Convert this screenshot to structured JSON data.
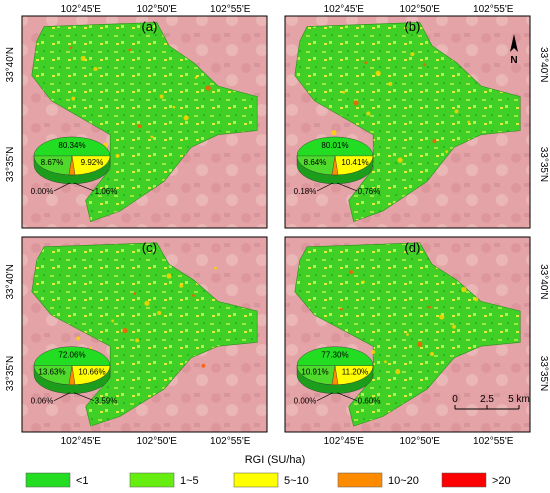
{
  "lon_labels_top": [
    "102°45'E",
    "102°50'E",
    "102°55'E"
  ],
  "lon_labels_bottom": [
    "102°45'E",
    "102°50'E",
    "102°55'E"
  ],
  "lat_labels_left": [
    "33°40'N",
    "33°35'N"
  ],
  "lat_labels_right": [
    "33°40'N",
    "33°35'N"
  ],
  "panels": [
    {
      "letter": "(a)",
      "pct": [
        "80.34%",
        "8.67%",
        "9.92%",
        "0.00%",
        "1.06%"
      ]
    },
    {
      "letter": "(b)",
      "pct": [
        "80.01%",
        "8.64%",
        "10.41%",
        "0.18%",
        "0.76%"
      ]
    },
    {
      "letter": "(c)",
      "pct": [
        "72.06%",
        "13.63%",
        "10.66%",
        "0.06%",
        "3.59%"
      ]
    },
    {
      "letter": "(d)",
      "pct": [
        "77.30%",
        "10.91%",
        "11.20%",
        "0.00%",
        "0.60%"
      ]
    }
  ],
  "north": "N",
  "scalebar": {
    "ticks": [
      "0",
      "2.5",
      "5 km"
    ]
  },
  "axis_title": "RGI (SU/ha)",
  "legend": [
    {
      "label": "<1",
      "color": "#22dd22"
    },
    {
      "label": "1~5",
      "color": "#66ee11"
    },
    {
      "label": "5~10",
      "color": "#ffff00"
    },
    {
      "label": "10~20",
      "color": "#ff8c00"
    },
    {
      "label": ">20",
      "color": "#ff0000"
    }
  ],
  "colors": {
    "background": "#e8a6a6",
    "map_green": "#4ccf2e",
    "map_light": "#8ae23a"
  }
}
